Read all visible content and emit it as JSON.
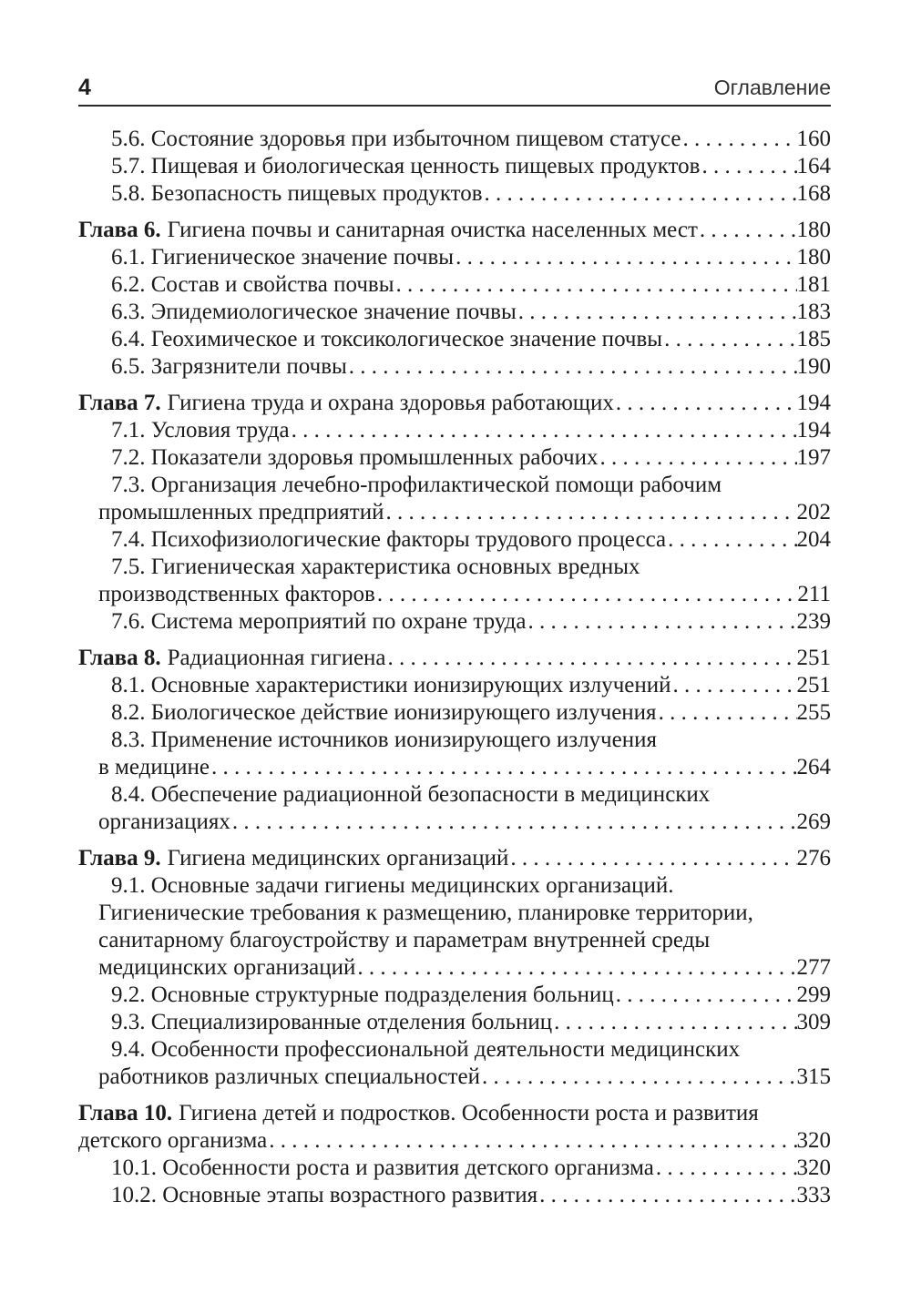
{
  "header": {
    "page_number": "4",
    "title": "Оглавление"
  },
  "toc": {
    "entries": [
      {
        "kind": "item",
        "lines": [
          "5.6. Состояние здоровья при избыточном пищевом статусе"
        ],
        "page": "160"
      },
      {
        "kind": "item",
        "lines": [
          "5.7. Пищевая и биологическая ценность пищевых продуктов"
        ],
        "page": "164"
      },
      {
        "kind": "item",
        "lines": [
          "5.8. Безопасность пищевых продуктов"
        ],
        "page": "168"
      },
      {
        "kind": "chapter",
        "bold": "Глава 6.",
        "lines": [
          "Гигиена почвы и санитарная очистка населенных мест"
        ],
        "page": "180"
      },
      {
        "kind": "item",
        "lines": [
          "6.1. Гигиеническое значение почвы"
        ],
        "page": "180"
      },
      {
        "kind": "item",
        "lines": [
          "6.2. Состав и свойства почвы"
        ],
        "page": "181"
      },
      {
        "kind": "item",
        "lines": [
          "6.3. Эпидемиологическое значение почвы"
        ],
        "page": "183"
      },
      {
        "kind": "item",
        "lines": [
          "6.4. Геохимическое и токсикологическое значение почвы"
        ],
        "page": "185"
      },
      {
        "kind": "item",
        "lines": [
          "6.5. Загрязнители почвы"
        ],
        "page": "190"
      },
      {
        "kind": "chapter",
        "bold": "Глава 7.",
        "lines": [
          "Гигиена труда и охрана здоровья работающих"
        ],
        "page": "194"
      },
      {
        "kind": "item",
        "lines": [
          "7.1. Условия труда"
        ],
        "page": "194"
      },
      {
        "kind": "item",
        "lines": [
          "7.2. Показатели здоровья промышленных рабочих"
        ],
        "page": "197"
      },
      {
        "kind": "item",
        "lines": [
          "7.3. Организация лечебно-профилактической помощи рабочим",
          "промышленных предприятий"
        ],
        "page": "202"
      },
      {
        "kind": "item",
        "lines": [
          "7.4. Психофизиологические факторы трудового процесса"
        ],
        "page": "204"
      },
      {
        "kind": "item",
        "lines": [
          "7.5. Гигиеническая характеристика основных вредных",
          "производственных факторов"
        ],
        "page": "211"
      },
      {
        "kind": "item",
        "lines": [
          "7.6. Система мероприятий по охране труда"
        ],
        "page": "239"
      },
      {
        "kind": "chapter",
        "bold": "Глава 8.",
        "lines": [
          "Радиационная гигиена"
        ],
        "page": "251"
      },
      {
        "kind": "item",
        "lines": [
          "8.1. Основные характеристики ионизирующих излучений"
        ],
        "page": "251"
      },
      {
        "kind": "item",
        "lines": [
          "8.2. Биологическое действие ионизирующего излучения"
        ],
        "page": "255"
      },
      {
        "kind": "item",
        "lines": [
          "8.3. Применение источников ионизирующего излучения",
          "в медицине"
        ],
        "page": "264"
      },
      {
        "kind": "item",
        "lines": [
          "8.4. Обеспечение радиационной безопасности в медицинских",
          "организациях"
        ],
        "page": "269"
      },
      {
        "kind": "chapter",
        "bold": "Глава 9.",
        "lines": [
          "Гигиена медицинских организаций"
        ],
        "page": "276"
      },
      {
        "kind": "item",
        "lines": [
          "9.1. Основные задачи гигиены медицинских организаций.",
          "Гигиенические требования к размещению, планировке территории,",
          "санитарному благоустройству и параметрам внутренней среды",
          "медицинских организаций"
        ],
        "page": "277"
      },
      {
        "kind": "item",
        "lines": [
          "9.2. Основные структурные подразделения больниц"
        ],
        "page": "299"
      },
      {
        "kind": "item",
        "lines": [
          "9.3. Специализированные отделения больниц"
        ],
        "page": "309"
      },
      {
        "kind": "item",
        "lines": [
          "9.4. Особенности профессиональной деятельности медицинских",
          "работников различных специальностей"
        ],
        "page": "315"
      },
      {
        "kind": "chapter",
        "bold": "Глава 10.",
        "lines": [
          "Гигиена детей и подростков. Особенности роста и развития",
          "детского организма"
        ],
        "page": "320"
      },
      {
        "kind": "item",
        "lines": [
          "10.1. Особенности роста и развития детского организма"
        ],
        "page": "320"
      },
      {
        "kind": "item",
        "lines": [
          "10.2. Основные этапы возрастного развития"
        ],
        "page": "333"
      }
    ]
  }
}
